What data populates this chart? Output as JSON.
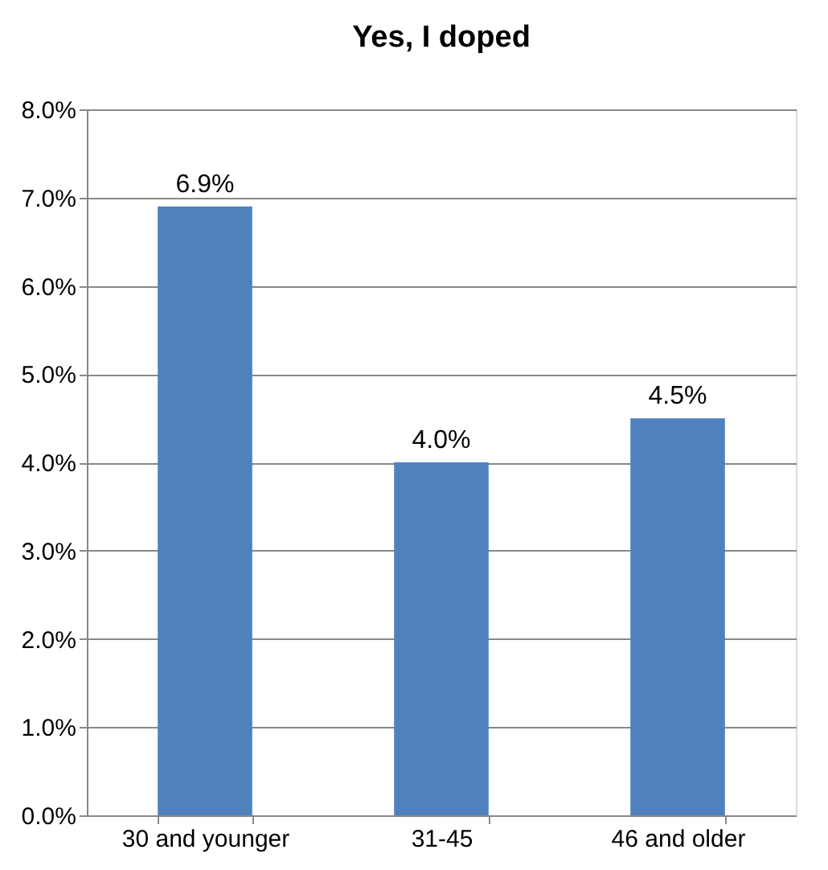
{
  "chart_data": {
    "type": "bar",
    "title": "Yes, I doped",
    "categories": [
      "30 and younger",
      "31-45",
      "46 and older"
    ],
    "values": [
      6.9,
      4.0,
      4.5
    ],
    "color": "#4f81bd",
    "value_labels": [
      "6.9%",
      "4.0%",
      "4.5%"
    ],
    "ylim": [
      0,
      8
    ],
    "yticks": [
      {
        "value": 0,
        "label": "0.0%"
      },
      {
        "value": 1,
        "label": "1.0%"
      },
      {
        "value": 2,
        "label": "2.0%"
      },
      {
        "value": 3,
        "label": "3.0%"
      },
      {
        "value": 4,
        "label": "4.0%"
      },
      {
        "value": 5,
        "label": "5.0%"
      },
      {
        "value": 6,
        "label": "6.0%"
      },
      {
        "value": 7,
        "label": "7.0%"
      },
      {
        "value": 8,
        "label": "8.0%"
      }
    ],
    "grid": "y"
  }
}
